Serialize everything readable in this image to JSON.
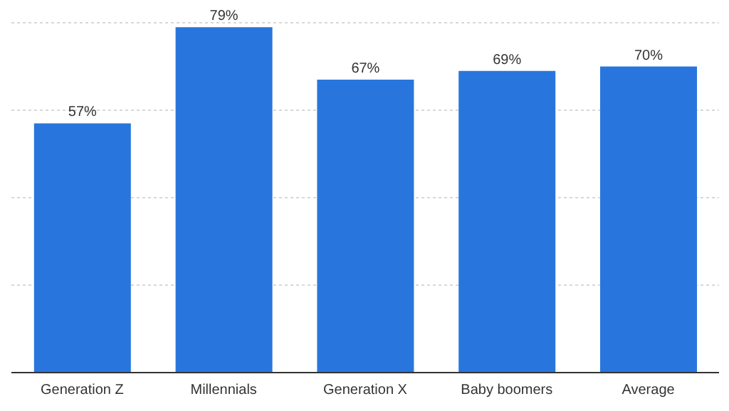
{
  "chart_data": {
    "type": "bar",
    "categories": [
      "Generation Z",
      "Millennials",
      "Generation X",
      "Baby boomers",
      "Average"
    ],
    "values": [
      57,
      79,
      67,
      69,
      70
    ],
    "color": "#2876dd",
    "value_labels": [
      "57%",
      "79%",
      "67%",
      "69%",
      "70%"
    ],
    "ylim": [
      0,
      80
    ],
    "yticks": [
      {
        "value": 20,
        "label": null
      },
      {
        "value": 40,
        "label": null
      },
      {
        "value": 60,
        "label": null
      },
      {
        "value": 80,
        "label": null
      }
    ],
    "grid": "y",
    "tick_labels": "x"
  }
}
